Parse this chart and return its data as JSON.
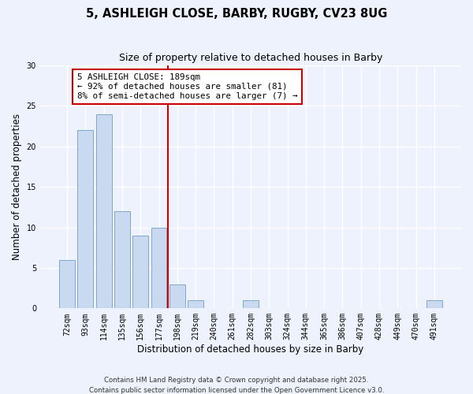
{
  "title": "5, ASHLEIGH CLOSE, BARBY, RUGBY, CV23 8UG",
  "subtitle": "Size of property relative to detached houses in Barby",
  "xlabel": "Distribution of detached houses by size in Barby",
  "ylabel": "Number of detached properties",
  "categories": [
    "72sqm",
    "93sqm",
    "114sqm",
    "135sqm",
    "156sqm",
    "177sqm",
    "198sqm",
    "219sqm",
    "240sqm",
    "261sqm",
    "282sqm",
    "303sqm",
    "324sqm",
    "344sqm",
    "365sqm",
    "386sqm",
    "407sqm",
    "428sqm",
    "449sqm",
    "470sqm",
    "491sqm"
  ],
  "values": [
    6,
    22,
    24,
    12,
    9,
    10,
    3,
    1,
    0,
    0,
    1,
    0,
    0,
    0,
    0,
    0,
    0,
    0,
    0,
    0,
    1
  ],
  "bar_color": "#c9d9f0",
  "bar_edgecolor": "#7fa8cc",
  "vline_x": 5.5,
  "vline_color": "#cc0000",
  "annotation_lines": [
    "5 ASHLEIGH CLOSE: 189sqm",
    "← 92% of detached houses are smaller (81)",
    "8% of semi-detached houses are larger (7) →"
  ],
  "annotation_box_edgecolor": "#cc0000",
  "annotation_fontsize": 7.8,
  "ylim": [
    0,
    30
  ],
  "yticks": [
    0,
    5,
    10,
    15,
    20,
    25,
    30
  ],
  "background_color": "#eef2fc",
  "plot_background": "#eef2fc",
  "footer1": "Contains HM Land Registry data © Crown copyright and database right 2025.",
  "footer2": "Contains public sector information licensed under the Open Government Licence v3.0.",
  "title_fontsize": 10.5,
  "subtitle_fontsize": 9,
  "xlabel_fontsize": 8.5,
  "ylabel_fontsize": 8.5,
  "tick_fontsize": 7,
  "footer_fontsize": 6.2
}
